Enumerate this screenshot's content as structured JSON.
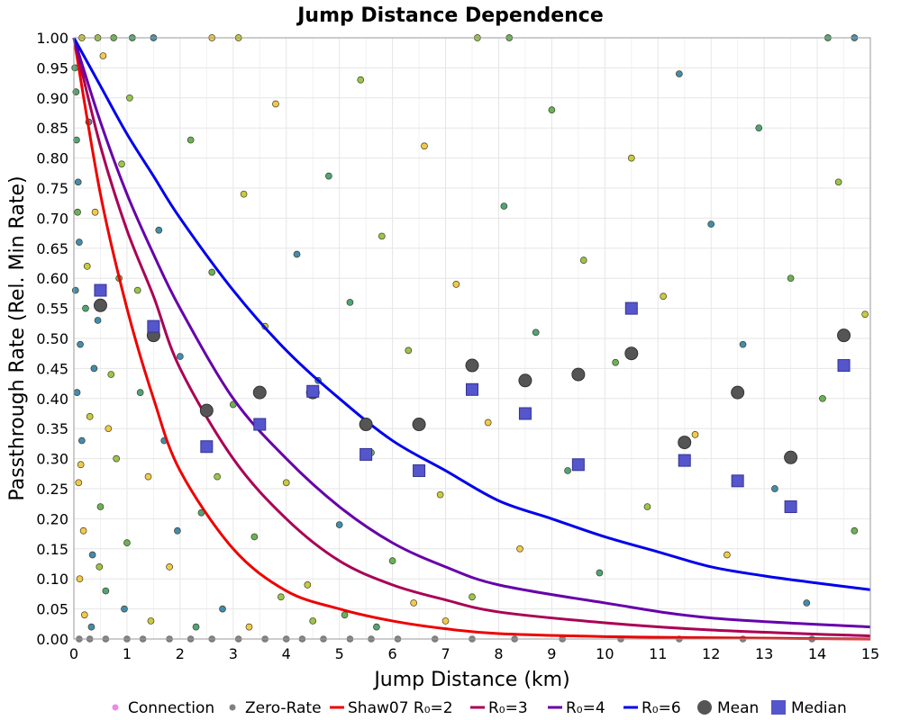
{
  "chart_data": {
    "type": "scatter",
    "title": "Jump Distance Dependence",
    "xlabel": "Jump Distance (km)",
    "ylabel": "Passthrough Rate (Rel. Min Rate)",
    "xlim": [
      0,
      15
    ],
    "ylim": [
      0,
      1
    ],
    "xticks": [
      "0",
      "1",
      "2",
      "3",
      "4",
      "5",
      "6",
      "7",
      "8",
      "9",
      "10",
      "11",
      "12",
      "13",
      "14",
      "15"
    ],
    "yticks": [
      "0.00",
      "0.05",
      "0.10",
      "0.15",
      "0.20",
      "0.25",
      "0.30",
      "0.35",
      "0.40",
      "0.45",
      "0.50",
      "0.55",
      "0.60",
      "0.65",
      "0.70",
      "0.75",
      "0.80",
      "0.85",
      "0.90",
      "0.95",
      "1.00"
    ],
    "grid": true,
    "legend_position": "bottom",
    "legend": [
      "Connection",
      "Zero-Rate",
      "Shaw07 R₀=2",
      "R₀=3",
      "R₀=4",
      "R₀=6",
      "Mean",
      "Median"
    ],
    "colors": {
      "connection": "#ee88ee",
      "zero_rate": "#808080",
      "R2": "#ee0000",
      "R3": "#aa0055",
      "R4": "#6600aa",
      "R6": "#0000ee",
      "mean": "#555555",
      "median": "#5555cc",
      "point_palette": [
        "#f2c33a",
        "#c4c42e",
        "#8fbf3a",
        "#5aaa48",
        "#3d9a6a",
        "#2f7fa6"
      ]
    },
    "series": [
      {
        "name": "Mean",
        "points": [
          {
            "x": 0.5,
            "y": 0.555
          },
          {
            "x": 1.5,
            "y": 0.505
          },
          {
            "x": 2.5,
            "y": 0.38
          },
          {
            "x": 3.5,
            "y": 0.41
          },
          {
            "x": 4.5,
            "y": 0.41
          },
          {
            "x": 5.5,
            "y": 0.357
          },
          {
            "x": 6.5,
            "y": 0.357
          },
          {
            "x": 7.5,
            "y": 0.455
          },
          {
            "x": 8.5,
            "y": 0.43
          },
          {
            "x": 9.5,
            "y": 0.44
          },
          {
            "x": 10.5,
            "y": 0.475
          },
          {
            "x": 11.5,
            "y": 0.327
          },
          {
            "x": 12.5,
            "y": 0.41
          },
          {
            "x": 13.5,
            "y": 0.302
          },
          {
            "x": 14.5,
            "y": 0.505
          }
        ]
      },
      {
        "name": "Median",
        "points": [
          {
            "x": 0.5,
            "y": 0.58
          },
          {
            "x": 1.5,
            "y": 0.52
          },
          {
            "x": 2.5,
            "y": 0.32
          },
          {
            "x": 3.5,
            "y": 0.357
          },
          {
            "x": 4.5,
            "y": 0.412
          },
          {
            "x": 5.5,
            "y": 0.307
          },
          {
            "x": 6.5,
            "y": 0.28
          },
          {
            "x": 7.5,
            "y": 0.415
          },
          {
            "x": 8.5,
            "y": 0.375
          },
          {
            "x": 9.5,
            "y": 0.29
          },
          {
            "x": 10.5,
            "y": 0.55
          },
          {
            "x": 11.5,
            "y": 0.297
          },
          {
            "x": 12.5,
            "y": 0.263
          },
          {
            "x": 13.5,
            "y": 0.22
          },
          {
            "x": 14.5,
            "y": 0.455
          }
        ]
      },
      {
        "name": "Shaw07 R₀=2",
        "points": [
          {
            "x": 0,
            "y": 1.0
          },
          {
            "x": 0.5,
            "y": 0.74
          },
          {
            "x": 1,
            "y": 0.55
          },
          {
            "x": 1.5,
            "y": 0.4
          },
          {
            "x": 2,
            "y": 0.28
          },
          {
            "x": 3,
            "y": 0.15
          },
          {
            "x": 4,
            "y": 0.08
          },
          {
            "x": 5,
            "y": 0.05
          },
          {
            "x": 6,
            "y": 0.03
          },
          {
            "x": 7,
            "y": 0.017
          },
          {
            "x": 8,
            "y": 0.009
          },
          {
            "x": 10,
            "y": 0.004
          },
          {
            "x": 12,
            "y": 0.002
          },
          {
            "x": 15,
            "y": 0.0
          }
        ]
      },
      {
        "name": "R₀=3",
        "points": [
          {
            "x": 0,
            "y": 1.0
          },
          {
            "x": 0.5,
            "y": 0.82
          },
          {
            "x": 1,
            "y": 0.68
          },
          {
            "x": 1.5,
            "y": 0.57
          },
          {
            "x": 2,
            "y": 0.45
          },
          {
            "x": 3,
            "y": 0.3
          },
          {
            "x": 4,
            "y": 0.2
          },
          {
            "x": 5,
            "y": 0.13
          },
          {
            "x": 6,
            "y": 0.09
          },
          {
            "x": 7,
            "y": 0.065
          },
          {
            "x": 8,
            "y": 0.045
          },
          {
            "x": 10,
            "y": 0.027
          },
          {
            "x": 12,
            "y": 0.015
          },
          {
            "x": 15,
            "y": 0.005
          }
        ]
      },
      {
        "name": "R₀=4",
        "points": [
          {
            "x": 0,
            "y": 1.0
          },
          {
            "x": 0.5,
            "y": 0.86
          },
          {
            "x": 1,
            "y": 0.74
          },
          {
            "x": 1.5,
            "y": 0.64
          },
          {
            "x": 2,
            "y": 0.55
          },
          {
            "x": 3,
            "y": 0.4
          },
          {
            "x": 4,
            "y": 0.3
          },
          {
            "x": 5,
            "y": 0.22
          },
          {
            "x": 6,
            "y": 0.16
          },
          {
            "x": 7,
            "y": 0.12
          },
          {
            "x": 8,
            "y": 0.09
          },
          {
            "x": 10,
            "y": 0.06
          },
          {
            "x": 12,
            "y": 0.035
          },
          {
            "x": 15,
            "y": 0.02
          }
        ]
      },
      {
        "name": "R₀=6",
        "points": [
          {
            "x": 0,
            "y": 1.0
          },
          {
            "x": 0.5,
            "y": 0.92
          },
          {
            "x": 1,
            "y": 0.84
          },
          {
            "x": 1.5,
            "y": 0.77
          },
          {
            "x": 2,
            "y": 0.7
          },
          {
            "x": 3,
            "y": 0.58
          },
          {
            "x": 4,
            "y": 0.48
          },
          {
            "x": 5,
            "y": 0.4
          },
          {
            "x": 6,
            "y": 0.33
          },
          {
            "x": 7,
            "y": 0.28
          },
          {
            "x": 8,
            "y": 0.23
          },
          {
            "x": 9,
            "y": 0.2
          },
          {
            "x": 10,
            "y": 0.17
          },
          {
            "x": 11,
            "y": 0.145
          },
          {
            "x": 12,
            "y": 0.12
          },
          {
            "x": 13,
            "y": 0.105
          },
          {
            "x": 14,
            "y": 0.093
          },
          {
            "x": 15,
            "y": 0.082
          }
        ]
      },
      {
        "name": "Zero-Rate",
        "points": [
          {
            "x": 0.1,
            "y": 0
          },
          {
            "x": 0.3,
            "y": 0
          },
          {
            "x": 0.6,
            "y": 0
          },
          {
            "x": 1.0,
            "y": 0
          },
          {
            "x": 1.3,
            "y": 0
          },
          {
            "x": 1.8,
            "y": 0
          },
          {
            "x": 2.2,
            "y": 0
          },
          {
            "x": 2.6,
            "y": 0
          },
          {
            "x": 3.1,
            "y": 0
          },
          {
            "x": 3.6,
            "y": 0
          },
          {
            "x": 4.0,
            "y": 0
          },
          {
            "x": 4.3,
            "y": 0
          },
          {
            "x": 4.7,
            "y": 0
          },
          {
            "x": 5.2,
            "y": 0
          },
          {
            "x": 5.6,
            "y": 0
          },
          {
            "x": 6.1,
            "y": 0
          },
          {
            "x": 6.8,
            "y": 0
          },
          {
            "x": 7.5,
            "y": 0
          },
          {
            "x": 8.3,
            "y": 0
          },
          {
            "x": 9.2,
            "y": 0
          },
          {
            "x": 10.3,
            "y": 0
          },
          {
            "x": 11.4,
            "y": 0
          },
          {
            "x": 12.6,
            "y": 0
          },
          {
            "x": 13.9,
            "y": 0
          }
        ]
      },
      {
        "name": "Connection",
        "points": [
          {
            "x": 0.02,
            "y": 0.95
          },
          {
            "x": 0.04,
            "y": 0.91
          },
          {
            "x": 0.05,
            "y": 0.83
          },
          {
            "x": 0.08,
            "y": 0.76
          },
          {
            "x": 0.1,
            "y": 0.66
          },
          {
            "x": 0.03,
            "y": 0.58
          },
          {
            "x": 0.12,
            "y": 0.49
          },
          {
            "x": 0.06,
            "y": 0.41
          },
          {
            "x": 0.15,
            "y": 0.33
          },
          {
            "x": 0.09,
            "y": 0.26
          },
          {
            "x": 0.18,
            "y": 0.18
          },
          {
            "x": 0.11,
            "y": 0.1
          },
          {
            "x": 0.2,
            "y": 0.04
          },
          {
            "x": 0.25,
            "y": 0.62
          },
          {
            "x": 0.28,
            "y": 0.86
          },
          {
            "x": 0.3,
            "y": 0.37
          },
          {
            "x": 0.35,
            "y": 0.14
          },
          {
            "x": 0.4,
            "y": 0.71
          },
          {
            "x": 0.45,
            "y": 0.53
          },
          {
            "x": 0.5,
            "y": 0.22
          },
          {
            "x": 0.55,
            "y": 0.97
          },
          {
            "x": 0.6,
            "y": 0.08
          },
          {
            "x": 0.7,
            "y": 0.44
          },
          {
            "x": 0.8,
            "y": 0.3
          },
          {
            "x": 0.9,
            "y": 0.79
          },
          {
            "x": 1.0,
            "y": 0.16
          },
          {
            "x": 1.2,
            "y": 0.58
          },
          {
            "x": 1.4,
            "y": 0.27
          },
          {
            "x": 1.6,
            "y": 0.68
          },
          {
            "x": 1.8,
            "y": 0.12
          },
          {
            "x": 2.0,
            "y": 0.47
          },
          {
            "x": 2.2,
            "y": 0.83
          },
          {
            "x": 2.4,
            "y": 0.21
          },
          {
            "x": 2.6,
            "y": 0.61
          },
          {
            "x": 2.8,
            "y": 0.05
          },
          {
            "x": 3.0,
            "y": 0.39
          },
          {
            "x": 3.2,
            "y": 0.74
          },
          {
            "x": 3.4,
            "y": 0.17
          },
          {
            "x": 3.6,
            "y": 0.52
          },
          {
            "x": 3.8,
            "y": 0.89
          },
          {
            "x": 4.0,
            "y": 0.26
          },
          {
            "x": 4.2,
            "y": 0.64
          },
          {
            "x": 4.4,
            "y": 0.09
          },
          {
            "x": 4.6,
            "y": 0.43
          },
          {
            "x": 4.8,
            "y": 0.77
          },
          {
            "x": 5.0,
            "y": 0.19
          },
          {
            "x": 5.2,
            "y": 0.56
          },
          {
            "x": 5.4,
            "y": 0.93
          },
          {
            "x": 5.6,
            "y": 0.31
          },
          {
            "x": 5.8,
            "y": 0.67
          },
          {
            "x": 6.0,
            "y": 0.13
          },
          {
            "x": 6.3,
            "y": 0.48
          },
          {
            "x": 6.6,
            "y": 0.82
          },
          {
            "x": 6.9,
            "y": 0.24
          },
          {
            "x": 7.2,
            "y": 0.59
          },
          {
            "x": 7.5,
            "y": 0.07
          },
          {
            "x": 7.8,
            "y": 0.36
          },
          {
            "x": 8.1,
            "y": 0.72
          },
          {
            "x": 8.4,
            "y": 0.15
          },
          {
            "x": 8.7,
            "y": 0.51
          },
          {
            "x": 9.0,
            "y": 0.88
          },
          {
            "x": 9.3,
            "y": 0.28
          },
          {
            "x": 9.6,
            "y": 0.63
          },
          {
            "x": 9.9,
            "y": 0.11
          },
          {
            "x": 10.2,
            "y": 0.46
          },
          {
            "x": 10.5,
            "y": 0.8
          },
          {
            "x": 10.8,
            "y": 0.22
          },
          {
            "x": 11.1,
            "y": 0.57
          },
          {
            "x": 11.4,
            "y": 0.94
          },
          {
            "x": 11.7,
            "y": 0.34
          },
          {
            "x": 12.0,
            "y": 0.69
          },
          {
            "x": 12.3,
            "y": 0.14
          },
          {
            "x": 12.6,
            "y": 0.49
          },
          {
            "x": 12.9,
            "y": 0.85
          },
          {
            "x": 13.2,
            "y": 0.25
          },
          {
            "x": 13.5,
            "y": 0.6
          },
          {
            "x": 13.8,
            "y": 0.06
          },
          {
            "x": 14.1,
            "y": 0.4
          },
          {
            "x": 14.4,
            "y": 0.76
          },
          {
            "x": 14.7,
            "y": 0.18
          },
          {
            "x": 14.9,
            "y": 0.54
          },
          {
            "x": 0.15,
            "y": 1.0
          },
          {
            "x": 0.45,
            "y": 1.0
          },
          {
            "x": 0.75,
            "y": 1.0
          },
          {
            "x": 1.1,
            "y": 1.0
          },
          {
            "x": 1.5,
            "y": 1.0
          },
          {
            "x": 2.6,
            "y": 1.0
          },
          {
            "x": 3.1,
            "y": 1.0
          },
          {
            "x": 7.6,
            "y": 1.0
          },
          {
            "x": 8.2,
            "y": 1.0
          },
          {
            "x": 14.2,
            "y": 1.0
          },
          {
            "x": 14.7,
            "y": 1.0
          },
          {
            "x": 0.07,
            "y": 0.71
          },
          {
            "x": 0.13,
            "y": 0.29
          },
          {
            "x": 0.22,
            "y": 0.55
          },
          {
            "x": 0.33,
            "y": 0.02
          },
          {
            "x": 0.38,
            "y": 0.45
          },
          {
            "x": 0.48,
            "y": 0.12
          },
          {
            "x": 0.65,
            "y": 0.35
          },
          {
            "x": 0.85,
            "y": 0.6
          },
          {
            "x": 0.95,
            "y": 0.05
          },
          {
            "x": 1.05,
            "y": 0.9
          },
          {
            "x": 1.25,
            "y": 0.41
          },
          {
            "x": 1.45,
            "y": 0.03
          },
          {
            "x": 1.7,
            "y": 0.33
          },
          {
            "x": 1.95,
            "y": 0.18
          },
          {
            "x": 2.3,
            "y": 0.02
          },
          {
            "x": 2.7,
            "y": 0.27
          },
          {
            "x": 3.3,
            "y": 0.02
          },
          {
            "x": 3.9,
            "y": 0.07
          },
          {
            "x": 4.5,
            "y": 0.03
          },
          {
            "x": 5.1,
            "y": 0.04
          },
          {
            "x": 5.7,
            "y": 0.02
          },
          {
            "x": 6.4,
            "y": 0.06
          },
          {
            "x": 7.0,
            "y": 0.03
          }
        ]
      }
    ]
  }
}
